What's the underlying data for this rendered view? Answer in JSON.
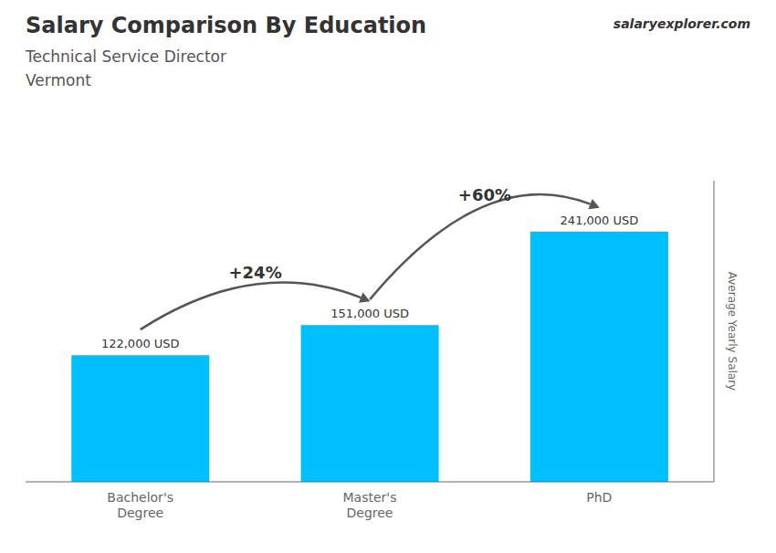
{
  "chart_data": {
    "type": "bar",
    "title": "Salary Comparison By Education",
    "subtitle": [
      "Technical Service Director",
      "Vermont"
    ],
    "ylabel": "Average Yearly Salary",
    "categories": [
      "Bachelor's\nDegree",
      "Master's\nDegree",
      "PhD"
    ],
    "values": [
      122000,
      151000,
      241000
    ],
    "value_labels": [
      "122,000 USD",
      "151,000 USD",
      "241,000 USD"
    ],
    "data_labels": true,
    "color": "#00BFFF",
    "ylim": [
      0,
      290000
    ],
    "tick_labels": "x",
    "annotations": [
      "+24%",
      "+60%",
      "salaryexplorer.com"
    ]
  }
}
